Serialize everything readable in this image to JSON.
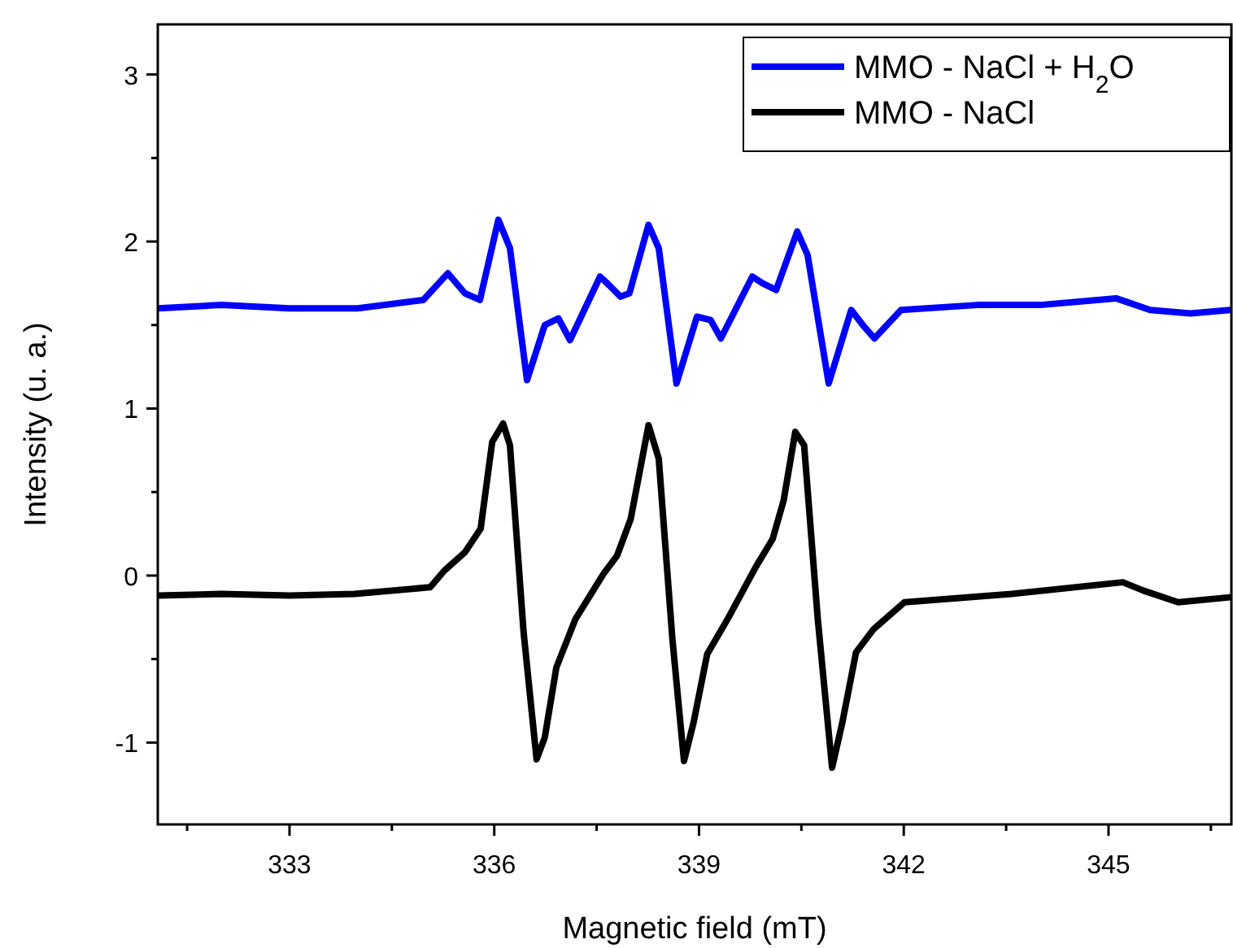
{
  "chart_data": {
    "type": "line",
    "xlabel": "Magnetic field (mT)",
    "ylabel": "Intensity (u. a.)",
    "xlim": [
      331.07,
      346.8
    ],
    "ylim": [
      -1.49,
      3.3
    ],
    "xticks": [
      {
        "value": 331.5,
        "label": null
      },
      333,
      {
        "value": 334.5,
        "label": null
      },
      336,
      {
        "value": 337.5,
        "label": null
      },
      339,
      {
        "value": 340.5,
        "label": null
      },
      342,
      {
        "value": 343.5,
        "label": null
      },
      345,
      {
        "value": 346.5,
        "label": null
      }
    ],
    "yticks": [
      -1,
      {
        "value": -0.5,
        "label": null
      },
      0,
      {
        "value": 0.5,
        "label": null
      },
      1,
      {
        "value": 1.5,
        "label": null
      },
      2,
      {
        "value": 2.5,
        "label": null
      },
      3
    ],
    "legend": "top right",
    "line_style": "solid",
    "marker": "none",
    "series": [
      {
        "name": "MMO - NaCl + H$_{2}$O",
        "color": "#0000ff",
        "x": [
          331.07,
          332,
          333,
          334,
          334.96,
          335.32,
          335.57,
          335.79,
          336.06,
          336.23,
          336.48,
          336.74,
          336.94,
          337.11,
          337.55,
          337.68,
          337.85,
          337.98,
          338.26,
          338.41,
          338.67,
          338.97,
          339.17,
          339.32,
          339.78,
          339.93,
          340.13,
          340.44,
          340.59,
          340.9,
          341.23,
          341.4,
          341.57,
          341.96,
          343.08,
          344,
          345.11,
          345.61,
          346.2,
          346.78
        ],
        "values": [
          1.6,
          1.62,
          1.6,
          1.6,
          1.65,
          1.81,
          1.69,
          1.65,
          2.13,
          1.96,
          1.17,
          1.5,
          1.54,
          1.41,
          1.79,
          1.74,
          1.67,
          1.69,
          2.1,
          1.96,
          1.15,
          1.55,
          1.53,
          1.42,
          1.79,
          1.75,
          1.71,
          2.06,
          1.92,
          1.15,
          1.59,
          1.5,
          1.42,
          1.59,
          1.62,
          1.62,
          1.66,
          1.59,
          1.57,
          1.59
        ]
      },
      {
        "name": "MMO - NaCl",
        "color": "#000000",
        "x": [
          331.07,
          332,
          333,
          333.95,
          335.06,
          335.27,
          335.57,
          335.8,
          335.97,
          336.13,
          336.23,
          336.43,
          336.62,
          336.74,
          336.91,
          337.19,
          337.6,
          337.8,
          338,
          338.26,
          338.41,
          338.61,
          338.78,
          338.92,
          339.12,
          339.42,
          339.83,
          340.08,
          340.24,
          340.41,
          340.54,
          340.74,
          340.95,
          341.1,
          341.3,
          341.56,
          342.01,
          343.58,
          345.21,
          345.51,
          346.02,
          346.78
        ],
        "values": [
          -0.12,
          -0.11,
          -0.12,
          -0.11,
          -0.07,
          0.03,
          0.14,
          0.28,
          0.8,
          0.91,
          0.78,
          -0.34,
          -1.1,
          -0.97,
          -0.55,
          -0.26,
          0.01,
          0.12,
          0.34,
          0.9,
          0.7,
          -0.38,
          -1.11,
          -0.88,
          -0.47,
          -0.26,
          0.05,
          0.22,
          0.45,
          0.86,
          0.78,
          -0.26,
          -1.15,
          -0.88,
          -0.46,
          -0.32,
          -0.16,
          -0.11,
          -0.04,
          -0.09,
          -0.16,
          -0.13
        ]
      }
    ]
  }
}
